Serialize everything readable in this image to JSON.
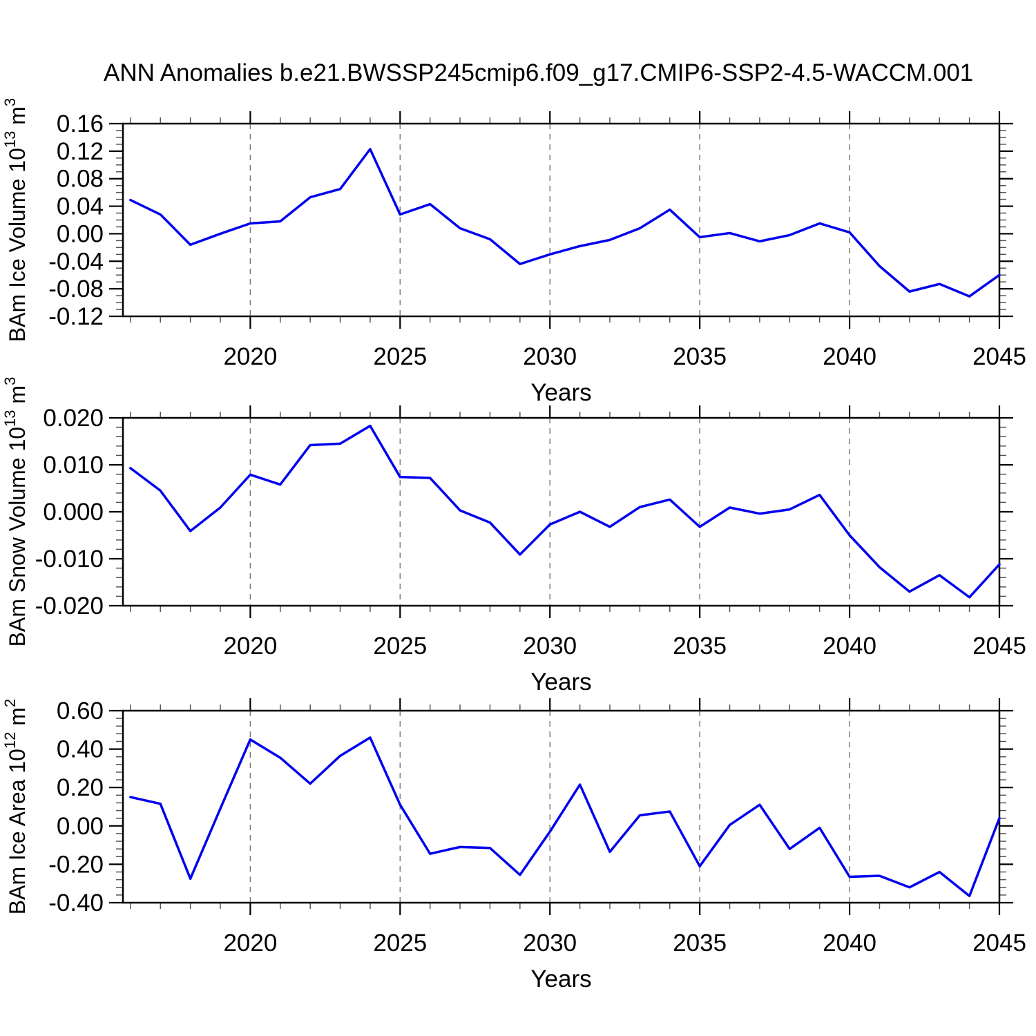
{
  "title": "ANN Anomalies b.e21.BWSSP245cmip6.f09_g17.CMIP6-SSP2-4.5-WACCM.001",
  "line_color": "#0000ee",
  "axis_color": "#000000",
  "grid_color": "#7a7a7a",
  "minor_tick_color": "#555555",
  "chart_data": [
    {
      "type": "line",
      "title": "",
      "ylabel": "BAm Ice Volume 10^13 m^3",
      "ylabel_parts": [
        "BAm Ice Volume 10",
        "13",
        " m",
        "3"
      ],
      "xlabel": "Years",
      "x": [
        2016,
        2017,
        2018,
        2019,
        2020,
        2021,
        2022,
        2023,
        2024,
        2025,
        2026,
        2027,
        2028,
        2029,
        2030,
        2031,
        2032,
        2033,
        2034,
        2035,
        2036,
        2037,
        2038,
        2039,
        2040,
        2041,
        2042,
        2043,
        2044,
        2045
      ],
      "values": [
        0.049,
        0.028,
        -0.016,
        0.0,
        0.015,
        0.018,
        0.053,
        0.065,
        0.123,
        0.028,
        0.043,
        0.008,
        -0.008,
        -0.044,
        -0.03,
        -0.018,
        -0.009,
        0.008,
        0.035,
        -0.005,
        0.001,
        -0.011,
        -0.002,
        0.015,
        0.002,
        -0.047,
        -0.084,
        -0.073,
        -0.091,
        -0.06
      ],
      "xlim": [
        2015.75,
        2045
      ],
      "ylim": [
        -0.12,
        0.16
      ],
      "xtick_values": [
        2020,
        2025,
        2030,
        2035,
        2040,
        2045
      ],
      "xtick_labels": [
        "2020",
        "2025",
        "2030",
        "2035",
        "2040",
        "2045"
      ],
      "xtick_minor_step": 1,
      "ytick_values": [
        0.16,
        0.12,
        0.08,
        0.04,
        0.0,
        -0.04,
        -0.08,
        -0.12
      ],
      "ytick_labels": [
        "0.16",
        "0.12",
        "0.08",
        "0.04",
        "0.00",
        "-0.04",
        "-0.08",
        "-0.12"
      ],
      "ytick_minor_step": 0.01,
      "grid_x": [
        2020,
        2025,
        2030,
        2035,
        2040
      ],
      "grid_on": true,
      "legend": "none"
    },
    {
      "type": "line",
      "title": "",
      "ylabel": "BAm Snow Volume 10^13 m^3",
      "ylabel_parts": [
        "BAm Snow Volume 10",
        "13",
        " m",
        "3"
      ],
      "xlabel": "Years",
      "x": [
        2016,
        2017,
        2018,
        2019,
        2020,
        2021,
        2022,
        2023,
        2024,
        2025,
        2026,
        2027,
        2028,
        2029,
        2030,
        2031,
        2032,
        2033,
        2034,
        2035,
        2036,
        2037,
        2038,
        2039,
        2040,
        2041,
        2042,
        2043,
        2044,
        2045
      ],
      "values": [
        0.0093,
        0.0045,
        -0.0041,
        0.0009,
        0.0079,
        0.0058,
        0.0142,
        0.0145,
        0.0183,
        0.0074,
        0.0072,
        0.0003,
        -0.0023,
        -0.0091,
        -0.0027,
        0.0,
        -0.0032,
        0.001,
        0.0026,
        -0.0032,
        0.0009,
        -0.0004,
        0.0005,
        0.0036,
        -0.005,
        -0.0118,
        -0.017,
        -0.0135,
        -0.0182,
        -0.0112
      ],
      "xlim": [
        2015.75,
        2045
      ],
      "ylim": [
        -0.02,
        0.02
      ],
      "xtick_values": [
        2020,
        2025,
        2030,
        2035,
        2040,
        2045
      ],
      "xtick_labels": [
        "2020",
        "2025",
        "2030",
        "2035",
        "2040",
        "2045"
      ],
      "xtick_minor_step": 1,
      "ytick_values": [
        0.02,
        0.01,
        0.0,
        -0.01,
        -0.02
      ],
      "ytick_labels": [
        "0.020",
        "0.010",
        "0.000",
        "-0.010",
        "-0.020"
      ],
      "ytick_minor_step": 0.002,
      "grid_x": [
        2020,
        2025,
        2030,
        2035,
        2040
      ],
      "grid_on": true,
      "legend": "none"
    },
    {
      "type": "line",
      "title": "",
      "ylabel": "BAm Ice Area 10^12 m^2",
      "ylabel_parts": [
        "BAm Ice Area 10",
        "12",
        " m",
        "2"
      ],
      "xlabel": "Years",
      "x": [
        2016,
        2017,
        2018,
        2019,
        2020,
        2021,
        2022,
        2023,
        2024,
        2025,
        2026,
        2027,
        2028,
        2029,
        2030,
        2031,
        2032,
        2033,
        2034,
        2035,
        2036,
        2037,
        2038,
        2039,
        2040,
        2041,
        2042,
        2043,
        2044,
        2045
      ],
      "values": [
        0.15,
        0.115,
        -0.275,
        0.09,
        0.45,
        0.355,
        0.22,
        0.365,
        0.46,
        0.11,
        -0.145,
        -0.11,
        -0.115,
        -0.255,
        -0.03,
        0.215,
        -0.135,
        0.055,
        0.075,
        -0.21,
        0.005,
        0.11,
        -0.12,
        -0.01,
        -0.265,
        -0.26,
        -0.32,
        -0.24,
        -0.365,
        0.04
      ],
      "xlim": [
        2015.75,
        2045
      ],
      "ylim": [
        -0.4,
        0.6
      ],
      "xtick_values": [
        2020,
        2025,
        2030,
        2035,
        2040,
        2045
      ],
      "xtick_labels": [
        "2020",
        "2025",
        "2030",
        "2035",
        "2040",
        "2045"
      ],
      "xtick_minor_step": 1,
      "ytick_values": [
        0.6,
        0.4,
        0.2,
        0.0,
        -0.2,
        -0.4
      ],
      "ytick_labels": [
        "0.60",
        "0.40",
        "0.20",
        "0.00",
        "-0.20",
        "-0.40"
      ],
      "ytick_minor_step": 0.04,
      "grid_x": [
        2020,
        2025,
        2030,
        2035,
        2040
      ],
      "grid_on": true,
      "legend": "none"
    }
  ]
}
